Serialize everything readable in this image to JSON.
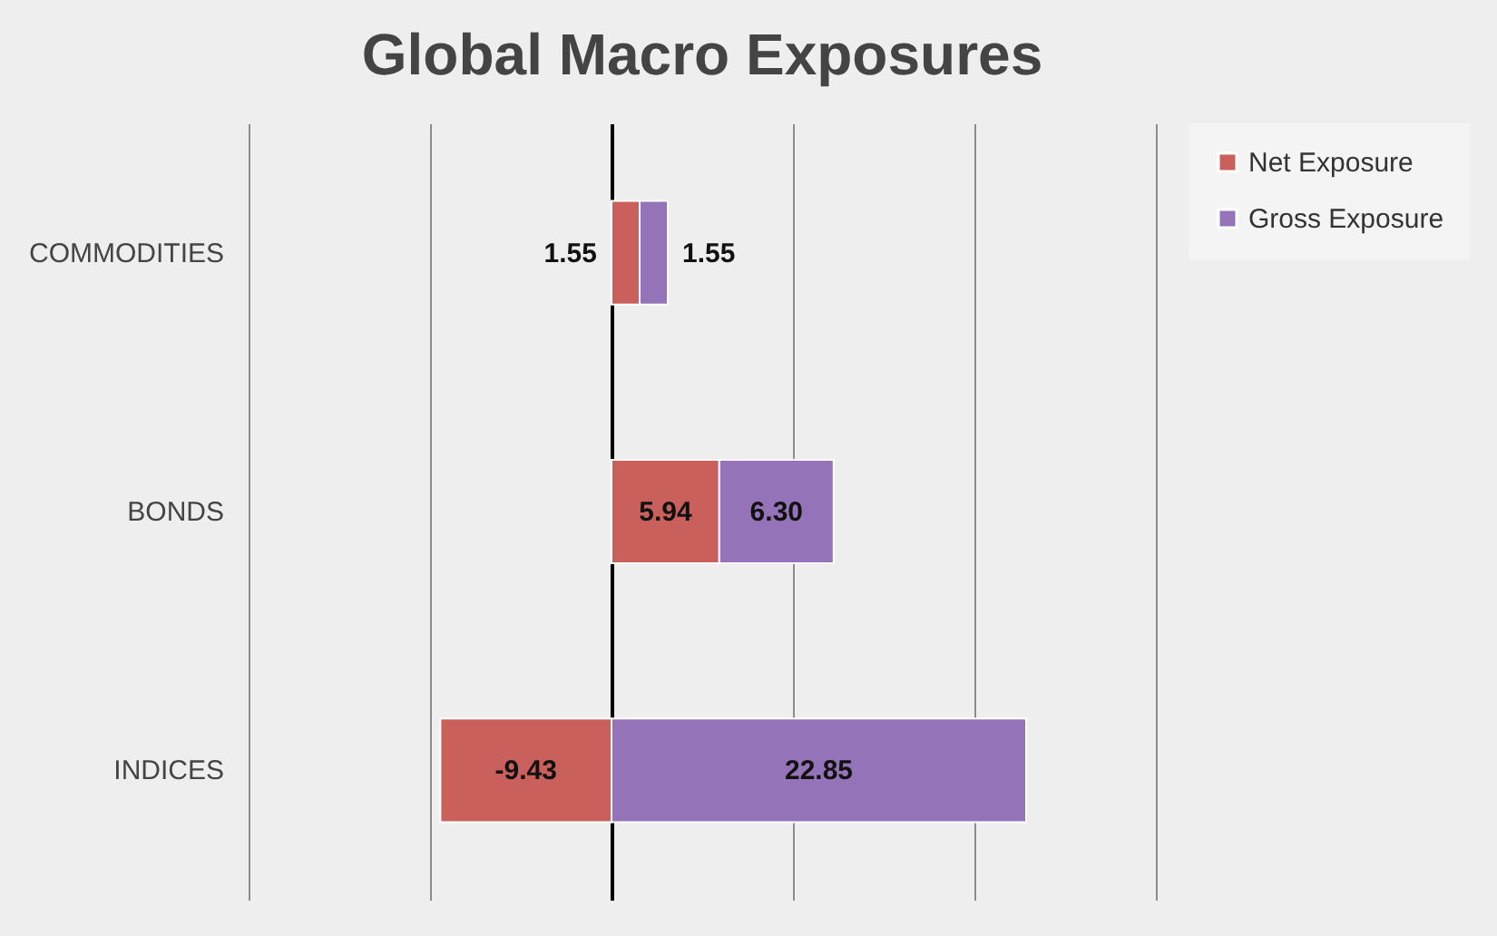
{
  "chart_data": {
    "type": "bar",
    "title": "Global Macro Exposures",
    "orientation": "horizontal",
    "stacked": true,
    "categories": [
      "COMMODITIES",
      "BONDS",
      "INDICES"
    ],
    "series": [
      {
        "name": "Net Exposure",
        "color": "#c9605c",
        "values": [
          1.55,
          5.94,
          -9.43
        ],
        "value_labels": [
          "1.55",
          "5.94",
          "-9.43"
        ]
      },
      {
        "name": "Gross Exposure",
        "color": "#9473b8",
        "values": [
          1.55,
          6.3,
          22.85
        ],
        "value_labels": [
          "1.55",
          "6.30",
          "22.85"
        ]
      }
    ],
    "xlim": [
      -20,
      30
    ],
    "xticks": [
      -20,
      -10,
      0,
      10,
      20,
      30
    ],
    "tick_labels": "y",
    "grid": "x",
    "legend": "right"
  }
}
